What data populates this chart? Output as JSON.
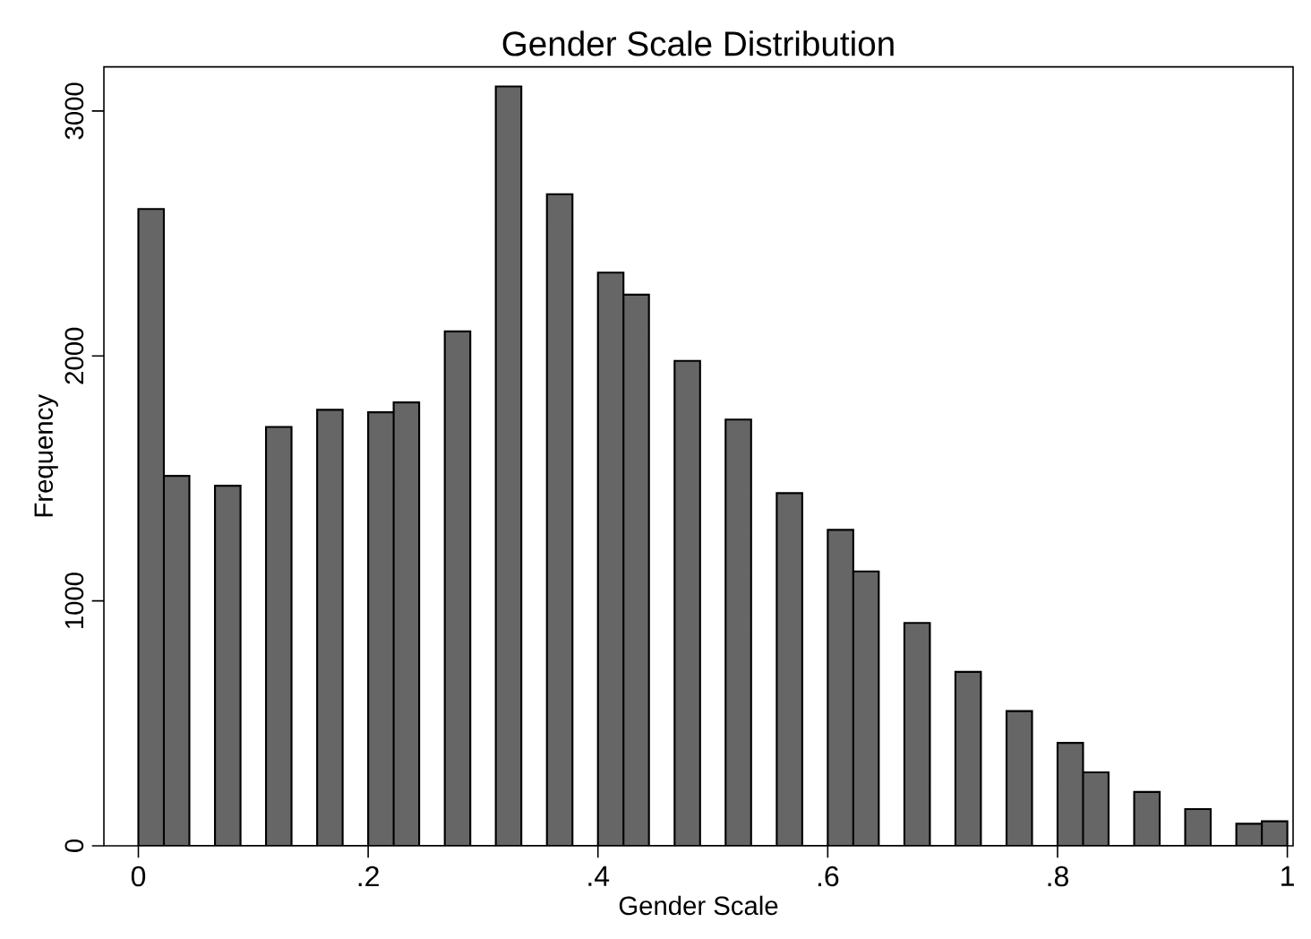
{
  "chart_data": {
    "type": "histogram",
    "title": "Gender Scale Distribution",
    "xlabel": "Gender Scale",
    "ylabel": "Frequency",
    "bins": [
      0,
      0.0222,
      0.0444,
      0.0667,
      0.0889,
      0.1111,
      0.1333,
      0.1556,
      0.1778,
      0.2,
      0.2222,
      0.2444,
      0.2667,
      0.2889,
      0.3111,
      0.3333,
      0.3556,
      0.3778,
      0.4,
      0.4222,
      0.4444,
      0.4667,
      0.4889,
      0.5111,
      0.5333,
      0.5556,
      0.5778,
      0.6,
      0.6222,
      0.6444,
      0.6667,
      0.6889,
      0.7111,
      0.7333,
      0.7556,
      0.7778,
      0.8,
      0.8222,
      0.8444,
      0.8667,
      0.8889,
      0.9111,
      0.9333,
      0.9556,
      0.9778,
      1
    ],
    "values": [
      2600,
      1510,
      0,
      1470,
      0,
      1710,
      0,
      1780,
      0,
      1770,
      1810,
      0,
      2100,
      0,
      3100,
      0,
      2660,
      0,
      2340,
      2250,
      0,
      1980,
      0,
      1740,
      0,
      1440,
      0,
      1290,
      1120,
      0,
      910,
      0,
      710,
      0,
      550,
      0,
      420,
      300,
      0,
      220,
      0,
      150,
      0,
      90,
      100
    ],
    "color": "#666666",
    "xlim": [
      -0.03,
      1.005
    ],
    "ylim": [
      0,
      3180
    ],
    "xticks": [
      0,
      {
        "value": 0.2,
        "label": ".2"
      },
      {
        "value": 0.4,
        "label": ".4"
      },
      {
        "value": 0.6,
        "label": ".6"
      },
      {
        "value": 0.8,
        "label": ".8"
      },
      1
    ],
    "yticks": [
      0,
      1000,
      2000,
      3000
    ],
    "grid": false
  }
}
